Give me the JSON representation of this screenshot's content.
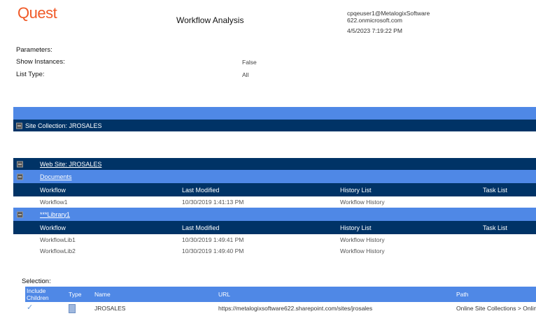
{
  "header": {
    "logo": "Quest",
    "title": "Workflow Analysis",
    "user_line1": "cpqeuser1@MetalogixSoftware",
    "user_line2": "622.onmicrosoft.com",
    "date": "4/5/2023 7:19:22 PM"
  },
  "parameters": {
    "label": "Parameters:",
    "show_instances_label": "Show Instances:",
    "show_instances_value": "False",
    "list_type_label": "List Type:",
    "list_type_value": "All"
  },
  "site_collection": "Site Collection: JROSALES",
  "web_site": "Web Site: JROSALES",
  "columns": [
    "Workflow",
    "Last Modified",
    "History List",
    "Task List"
  ],
  "lists": [
    {
      "name": "Documents",
      "rows": [
        [
          "Workflow1",
          "10/30/2019 1:41:13 PM",
          "Workflow History",
          ""
        ]
      ]
    },
    {
      "name": "***Library1",
      "rows": [
        [
          "WorkflowLib1",
          "10/30/2019 1:49:41 PM",
          "Workflow History",
          ""
        ],
        [
          "WorkflowLib2",
          "10/30/2019 1:49:40 PM",
          "Workflow History",
          ""
        ]
      ]
    }
  ],
  "selection": {
    "label": "Selection:",
    "columns": [
      "Include Children",
      "Type",
      "Name",
      "URL",
      "Path"
    ],
    "row": {
      "include_children": "✓",
      "type_icon": "site-collection-icon",
      "name": "JROSALES",
      "url": "https://metalogixsoftware622.sharepoint.com/sites/jrosales",
      "path": "Online Site Collections > Online"
    }
  },
  "colors": {
    "dark": "#003366",
    "light": "#4f88e6",
    "logo": "#f05a28"
  }
}
